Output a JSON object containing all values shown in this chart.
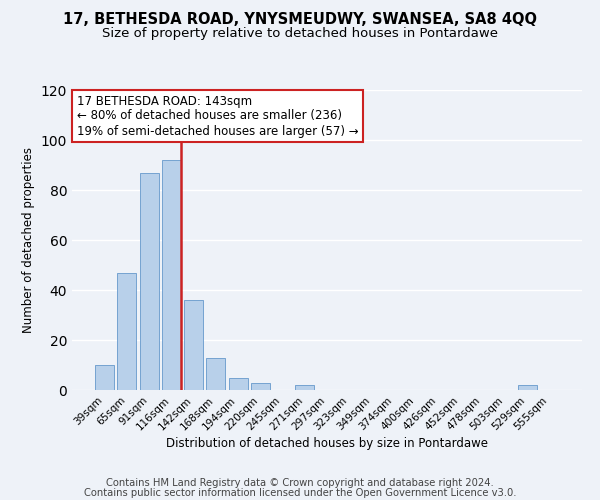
{
  "title1": "17, BETHESDA ROAD, YNYSMEUDWY, SWANSEA, SA8 4QQ",
  "title2": "Size of property relative to detached houses in Pontardawe",
  "xlabel": "Distribution of detached houses by size in Pontardawe",
  "ylabel": "Number of detached properties",
  "bin_labels": [
    "39sqm",
    "65sqm",
    "91sqm",
    "116sqm",
    "142sqm",
    "168sqm",
    "194sqm",
    "220sqm",
    "245sqm",
    "271sqm",
    "297sqm",
    "323sqm",
    "349sqm",
    "374sqm",
    "400sqm",
    "426sqm",
    "452sqm",
    "478sqm",
    "503sqm",
    "529sqm",
    "555sqm"
  ],
  "bar_values": [
    10,
    47,
    87,
    92,
    36,
    13,
    5,
    3,
    0,
    2,
    0,
    0,
    0,
    0,
    0,
    0,
    0,
    0,
    0,
    2,
    0
  ],
  "bar_color": "#b8d0ea",
  "bar_edge_color": "#6699cc",
  "ylim": [
    0,
    120
  ],
  "yticks": [
    0,
    20,
    40,
    60,
    80,
    100,
    120
  ],
  "red_line_after_index": 3,
  "annotation_box_text_line1": "17 BETHESDA ROAD: 143sqm",
  "annotation_box_text_line2": "← 80% of detached houses are smaller (236)",
  "annotation_box_text_line3": "19% of semi-detached houses are larger (57) →",
  "annotation_box_color": "#ffffff",
  "annotation_box_edge_color": "#cc2222",
  "footer1": "Contains HM Land Registry data © Crown copyright and database right 2024.",
  "footer2": "Contains public sector information licensed under the Open Government Licence v3.0.",
  "background_color": "#eef2f8",
  "grid_color": "#ffffff",
  "title_fontsize": 10.5,
  "subtitle_fontsize": 9.5,
  "annotation_fontsize": 8.5,
  "axis_label_fontsize": 8.5,
  "tick_fontsize": 7.5,
  "footer_fontsize": 7.2
}
